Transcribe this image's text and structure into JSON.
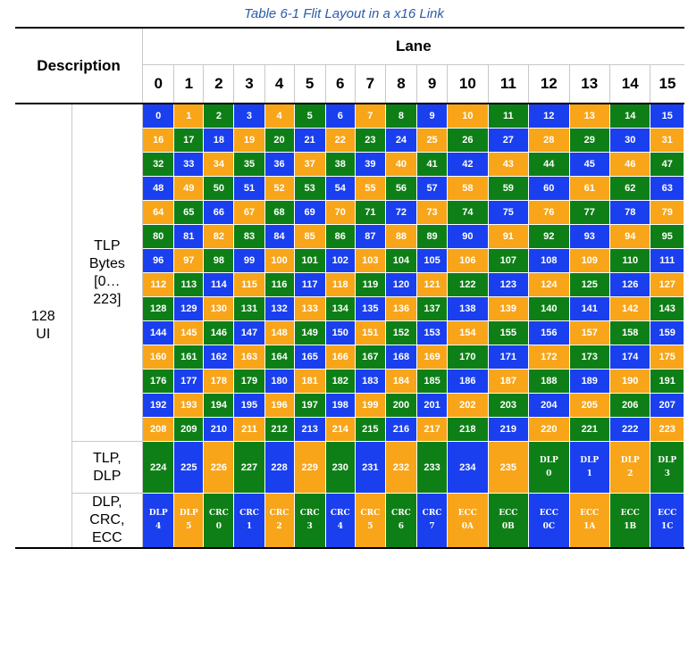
{
  "caption": "Table 6-1 Flit Layout in a x16 Link",
  "header": {
    "description": "Description",
    "lane": "Lane",
    "lanes": [
      "0",
      "1",
      "2",
      "3",
      "4",
      "5",
      "6",
      "7",
      "8",
      "9",
      "10",
      "11",
      "12",
      "13",
      "14",
      "15"
    ]
  },
  "ui_label": [
    "128",
    "UI"
  ],
  "groups": [
    {
      "label": [
        "TLP",
        "Bytes",
        "[0…",
        "223]"
      ]
    },
    {
      "label": [
        "TLP,",
        "DLP"
      ]
    },
    {
      "label": [
        "DLP,",
        "CRC,",
        "ECC"
      ]
    }
  ],
  "colors": {
    "blue": "#1a3fef",
    "orange": "#f8a51a",
    "green": "#0e7f17"
  },
  "tlp_rows": [
    [
      "0",
      "1",
      "2",
      "3",
      "4",
      "5",
      "6",
      "7",
      "8",
      "9",
      "10",
      "11",
      "12",
      "13",
      "14",
      "15"
    ],
    [
      "16",
      "17",
      "18",
      "19",
      "20",
      "21",
      "22",
      "23",
      "24",
      "25",
      "26",
      "27",
      "28",
      "29",
      "30",
      "31"
    ],
    [
      "32",
      "33",
      "34",
      "35",
      "36",
      "37",
      "38",
      "39",
      "40",
      "41",
      "42",
      "43",
      "44",
      "45",
      "46",
      "47"
    ],
    [
      "48",
      "49",
      "50",
      "51",
      "52",
      "53",
      "54",
      "55",
      "56",
      "57",
      "58",
      "59",
      "60",
      "61",
      "62",
      "63"
    ],
    [
      "64",
      "65",
      "66",
      "67",
      "68",
      "69",
      "70",
      "71",
      "72",
      "73",
      "74",
      "75",
      "76",
      "77",
      "78",
      "79"
    ],
    [
      "80",
      "81",
      "82",
      "83",
      "84",
      "85",
      "86",
      "87",
      "88",
      "89",
      "90",
      "91",
      "92",
      "93",
      "94",
      "95"
    ],
    [
      "96",
      "97",
      "98",
      "99",
      "100",
      "101",
      "102",
      "103",
      "104",
      "105",
      "106",
      "107",
      "108",
      "109",
      "110",
      "111"
    ],
    [
      "112",
      "113",
      "114",
      "115",
      "116",
      "117",
      "118",
      "119",
      "120",
      "121",
      "122",
      "123",
      "124",
      "125",
      "126",
      "127"
    ],
    [
      "128",
      "129",
      "130",
      "131",
      "132",
      "133",
      "134",
      "135",
      "136",
      "137",
      "138",
      "139",
      "140",
      "141",
      "142",
      "143"
    ],
    [
      "144",
      "145",
      "146",
      "147",
      "148",
      "149",
      "150",
      "151",
      "152",
      "153",
      "154",
      "155",
      "156",
      "157",
      "158",
      "159"
    ],
    [
      "160",
      "161",
      "162",
      "163",
      "164",
      "165",
      "166",
      "167",
      "168",
      "169",
      "170",
      "171",
      "172",
      "173",
      "174",
      "175"
    ],
    [
      "176",
      "177",
      "178",
      "179",
      "180",
      "181",
      "182",
      "183",
      "184",
      "185",
      "186",
      "187",
      "188",
      "189",
      "190",
      "191"
    ],
    [
      "192",
      "193",
      "194",
      "195",
      "196",
      "197",
      "198",
      "199",
      "200",
      "201",
      "202",
      "203",
      "204",
      "205",
      "206",
      "207"
    ],
    [
      "208",
      "209",
      "210",
      "211",
      "212",
      "213",
      "214",
      "215",
      "216",
      "217",
      "218",
      "219",
      "220",
      "221",
      "222",
      "223"
    ]
  ],
  "tlp_dlp_row": [
    [
      "224"
    ],
    [
      "225"
    ],
    [
      "226"
    ],
    [
      "227"
    ],
    [
      "228"
    ],
    [
      "229"
    ],
    [
      "230"
    ],
    [
      "231"
    ],
    [
      "232"
    ],
    [
      "233"
    ],
    [
      "234"
    ],
    [
      "235"
    ],
    [
      "DLP",
      "0"
    ],
    [
      "DLP",
      "1"
    ],
    [
      "DLP",
      "2"
    ],
    [
      "DLP",
      "3"
    ]
  ],
  "dlp_crc_ecc_row": [
    [
      "DLP",
      "4"
    ],
    [
      "DLP",
      "5"
    ],
    [
      "CRC",
      "0"
    ],
    [
      "CRC",
      "1"
    ],
    [
      "CRC",
      "2"
    ],
    [
      "CRC",
      "3"
    ],
    [
      "CRC",
      "4"
    ],
    [
      "CRC",
      "5"
    ],
    [
      "CRC",
      "6"
    ],
    [
      "CRC",
      "7"
    ],
    [
      "ECC",
      "0A"
    ],
    [
      "ECC",
      "0B"
    ],
    [
      "ECC",
      "0C"
    ],
    [
      "ECC",
      "1A"
    ],
    [
      "ECC",
      "1B"
    ],
    [
      "ECC",
      "1C"
    ]
  ]
}
